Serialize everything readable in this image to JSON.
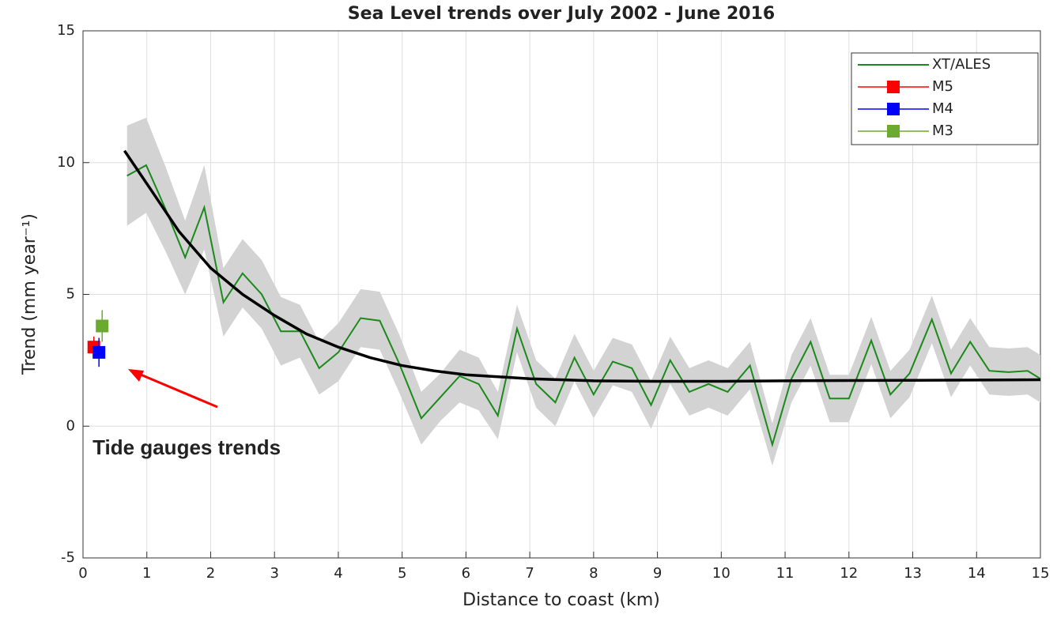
{
  "chart_data": {
    "type": "line",
    "title": "Sea Level trends over July 2002 - June 2016",
    "x_label": "Distance to coast (km)",
    "y_label": "Trend (mm year⁻¹)",
    "xlim": [
      0,
      15
    ],
    "ylim": [
      -5,
      15
    ],
    "xticks": [
      0,
      1,
      2,
      3,
      4,
      5,
      6,
      7,
      8,
      9,
      10,
      11,
      12,
      13,
      14,
      15
    ],
    "yticks": [
      -5,
      0,
      5,
      10,
      15
    ],
    "grid": true,
    "legend": "upper right",
    "series": [
      {
        "name": "XT/ALES",
        "color": "#1a8a1a",
        "band_color": "#d3d3d3",
        "marker": "none",
        "x": [
          0.69,
          0.99,
          1.3,
          1.6,
          1.9,
          2.2,
          2.5,
          2.8,
          3.1,
          3.4,
          3.7,
          4.0,
          4.35,
          4.65,
          4.95,
          5.3,
          5.6,
          5.9,
          6.2,
          6.5,
          6.8,
          7.1,
          7.4,
          7.7,
          8.0,
          8.3,
          8.6,
          8.9,
          9.2,
          9.5,
          9.8,
          10.1,
          10.45,
          10.8,
          11.1,
          11.4,
          11.7,
          12.0,
          12.35,
          12.65,
          12.95,
          13.3,
          13.6,
          13.9,
          14.2,
          14.5,
          14.8,
          15.0
        ],
        "values": [
          9.5,
          9.9,
          8.2,
          6.4,
          8.3,
          4.7,
          5.8,
          5.0,
          3.6,
          3.6,
          2.2,
          2.8,
          4.1,
          4.0,
          2.4,
          0.3,
          1.1,
          1.9,
          1.6,
          0.4,
          3.7,
          1.6,
          0.9,
          2.6,
          1.2,
          2.45,
          2.2,
          0.8,
          2.5,
          1.3,
          1.6,
          1.3,
          2.3,
          -0.7,
          1.8,
          3.2,
          1.05,
          1.05,
          3.25,
          1.2,
          2.0,
          4.05,
          2.0,
          3.2,
          2.1,
          2.05,
          2.1,
          1.8
        ],
        "errors": [
          1.9,
          1.8,
          1.6,
          1.4,
          1.6,
          1.3,
          1.3,
          1.3,
          1.3,
          1.0,
          1.0,
          1.1,
          1.1,
          1.1,
          1.1,
          1.0,
          0.9,
          1.0,
          1.0,
          0.9,
          0.9,
          0.9,
          0.9,
          0.9,
          0.9,
          0.9,
          0.9,
          0.9,
          0.9,
          0.9,
          0.9,
          0.9,
          0.9,
          0.8,
          0.9,
          0.9,
          0.9,
          0.9,
          0.9,
          0.9,
          0.9,
          0.9,
          0.9,
          0.9,
          0.9,
          0.9,
          0.9,
          0.9
        ]
      },
      {
        "name": "M5",
        "color": "#ff0000",
        "marker": "square",
        "x": [
          0.17
        ],
        "values": [
          3.0
        ],
        "errors": [
          0.4
        ]
      },
      {
        "name": "M4",
        "color": "#0000ff",
        "marker": "square",
        "x": [
          0.25
        ],
        "values": [
          2.8
        ],
        "errors": [
          0.55
        ]
      },
      {
        "name": "M3",
        "color": "#6aaa2e",
        "marker": "square",
        "x": [
          0.3
        ],
        "values": [
          3.8
        ],
        "errors": [
          0.6
        ]
      }
    ],
    "fit": {
      "color": "#000000",
      "x": [
        0.65,
        1,
        1.5,
        2,
        2.5,
        3,
        3.5,
        4,
        4.5,
        5,
        5.5,
        6,
        7,
        8,
        9,
        10,
        11,
        12,
        13,
        14,
        15
      ],
      "values": [
        10.45,
        9.2,
        7.4,
        6.0,
        5.0,
        4.2,
        3.5,
        3.0,
        2.6,
        2.3,
        2.1,
        1.95,
        1.8,
        1.72,
        1.7,
        1.7,
        1.72,
        1.73,
        1.74,
        1.75,
        1.76
      ]
    },
    "annotation": {
      "text": "Tide gauges trends",
      "color": "#ff0000",
      "x": 0.2,
      "y": -0.8
    }
  }
}
